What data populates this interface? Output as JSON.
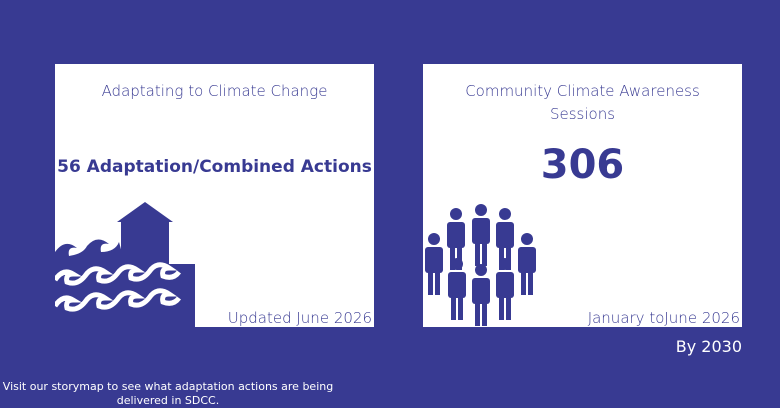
{
  "cards": [
    {
      "title": "Adaptating to Climate Change",
      "value": "56 Adaptation/Combined Actions",
      "footer": "Updated June 2026"
    },
    {
      "title": "Community Climate Awareness Sessions",
      "value": 306,
      "footer": "January toJune 2026"
    }
  ],
  "target": "By 2030",
  "note": "Visit our storymap to see what adaptation actions are being delivered in SDCC."
}
